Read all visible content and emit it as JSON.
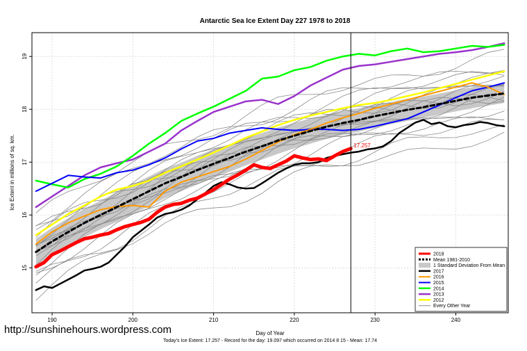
{
  "chart_data": {
    "type": "line",
    "title": "Antarctic Sea Ice Extent Day 227 1978 to 2018",
    "xlabel": "Day of Year",
    "ylabel": "Ice Extent in millions of sq. km.",
    "xlim": [
      187.5,
      246.5
    ],
    "ylim": [
      14.15,
      19.45
    ],
    "x_ticks": [
      190,
      200,
      210,
      220,
      230,
      240
    ],
    "y_ticks": [
      15,
      16,
      17,
      18,
      19
    ],
    "grid": true,
    "legend_position": "bottom-right",
    "marker_day": 227,
    "current_value_label": "17.257",
    "series": [
      {
        "name": "2018",
        "color": "#ff0000",
        "width": 5,
        "x": [
          188,
          189,
          190,
          191,
          192,
          193,
          194,
          195,
          196,
          197,
          198,
          199,
          200,
          201,
          202,
          203,
          204,
          205,
          206,
          207,
          208,
          209,
          210,
          211,
          212,
          213,
          214,
          215,
          216,
          217,
          218,
          219,
          220,
          221,
          222,
          223,
          224,
          225,
          226,
          227
        ],
        "y": [
          15.02,
          15.1,
          15.25,
          15.32,
          15.4,
          15.48,
          15.55,
          15.58,
          15.62,
          15.65,
          15.72,
          15.78,
          15.82,
          15.86,
          15.92,
          16.05,
          16.15,
          16.2,
          16.22,
          16.28,
          16.32,
          16.4,
          16.48,
          16.58,
          16.68,
          16.76,
          16.85,
          16.95,
          16.9,
          16.88,
          16.95,
          17.02,
          17.12,
          17.08,
          17.05,
          17.06,
          17.03,
          17.12,
          17.2,
          17.257
        ]
      },
      {
        "name": "Mean 1981-2010",
        "color": "#000000",
        "width": 3,
        "dash": "6,4",
        "x": [
          188,
          190,
          192,
          194,
          196,
          198,
          200,
          202,
          204,
          206,
          208,
          210,
          212,
          214,
          216,
          218,
          220,
          222,
          224,
          226,
          228,
          230,
          232,
          234,
          236,
          238,
          240,
          242,
          244,
          246
        ],
        "y": [
          15.3,
          15.5,
          15.68,
          15.85,
          16.0,
          16.15,
          16.3,
          16.45,
          16.6,
          16.72,
          16.85,
          16.97,
          17.08,
          17.2,
          17.3,
          17.41,
          17.5,
          17.59,
          17.67,
          17.74,
          17.8,
          17.87,
          17.93,
          17.99,
          18.04,
          18.1,
          18.16,
          18.22,
          18.26,
          18.3
        ]
      },
      {
        "name": "1 Standard Deviation From Mean",
        "color": "#c8c8c8",
        "band": true,
        "x": [
          188,
          190,
          192,
          194,
          196,
          198,
          200,
          202,
          204,
          206,
          208,
          210,
          212,
          214,
          216,
          218,
          220,
          222,
          224,
          226,
          228,
          230,
          232,
          234,
          236,
          238,
          240,
          242,
          244,
          246
        ],
        "lower": [
          15.05,
          15.24,
          15.42,
          15.58,
          15.73,
          15.87,
          16.02,
          16.17,
          16.32,
          16.45,
          16.58,
          16.7,
          16.82,
          16.94,
          17.05,
          17.16,
          17.26,
          17.35,
          17.44,
          17.51,
          17.58,
          17.65,
          17.72,
          17.78,
          17.84,
          17.9,
          17.96,
          18.02,
          18.07,
          18.12
        ],
        "upper": [
          15.55,
          15.76,
          15.94,
          16.12,
          16.27,
          16.43,
          16.58,
          16.73,
          16.88,
          16.99,
          17.12,
          17.24,
          17.34,
          17.46,
          17.55,
          17.66,
          17.74,
          17.83,
          17.9,
          17.97,
          18.02,
          18.09,
          18.14,
          18.2,
          18.24,
          18.3,
          18.36,
          18.42,
          18.45,
          18.48
        ]
      },
      {
        "name": "2017",
        "color": "#000000",
        "width": 2.5,
        "x": [
          188,
          189,
          190,
          191,
          192,
          193,
          194,
          195,
          196,
          197,
          198,
          199,
          200,
          201,
          202,
          203,
          204,
          205,
          206,
          207,
          208,
          209,
          210,
          211,
          212,
          213,
          214,
          215,
          216,
          217,
          218,
          219,
          220,
          221,
          222,
          223,
          224,
          225,
          226,
          227,
          228,
          229,
          230,
          231,
          232,
          233,
          234,
          235,
          236,
          237,
          238,
          239,
          240,
          241,
          242,
          243,
          244,
          245,
          246
        ],
        "y": [
          14.58,
          14.65,
          14.62,
          14.7,
          14.78,
          14.86,
          14.95,
          14.98,
          15.02,
          15.1,
          15.25,
          15.4,
          15.58,
          15.7,
          15.82,
          15.95,
          16.02,
          16.05,
          16.1,
          16.18,
          16.3,
          16.42,
          16.55,
          16.62,
          16.58,
          16.52,
          16.5,
          16.51,
          16.6,
          16.7,
          16.8,
          16.88,
          16.95,
          16.98,
          16.98,
          17.0,
          17.08,
          17.12,
          17.15,
          17.18,
          17.2,
          17.24,
          17.26,
          17.3,
          17.4,
          17.55,
          17.65,
          17.75,
          17.8,
          17.72,
          17.75,
          17.68,
          17.66,
          17.7,
          17.72,
          17.76,
          17.74,
          17.7,
          17.68
        ]
      },
      {
        "name": "2016",
        "color": "#ff9900",
        "width": 2,
        "x": [
          188,
          190,
          192,
          194,
          196,
          198,
          200,
          202,
          204,
          206,
          208,
          210,
          212,
          214,
          216,
          218,
          220,
          222,
          224,
          226,
          228,
          230,
          232,
          234,
          236,
          238,
          240,
          242,
          244,
          246
        ],
        "y": [
          15.45,
          15.68,
          15.85,
          15.98,
          16.1,
          16.16,
          16.18,
          16.15,
          16.45,
          16.62,
          16.72,
          16.82,
          16.92,
          17.06,
          17.22,
          17.38,
          17.52,
          17.62,
          17.74,
          17.84,
          17.92,
          18.02,
          18.1,
          18.18,
          18.26,
          18.34,
          18.42,
          18.5,
          18.42,
          18.28
        ]
      },
      {
        "name": "2015",
        "color": "#0000ff",
        "width": 2,
        "x": [
          188,
          190,
          192,
          194,
          196,
          198,
          200,
          202,
          204,
          206,
          208,
          210,
          212,
          214,
          216,
          218,
          220,
          222,
          224,
          226,
          228,
          230,
          232,
          234,
          236,
          238,
          240,
          242,
          244,
          246
        ],
        "y": [
          16.45,
          16.6,
          16.75,
          16.72,
          16.7,
          16.8,
          16.85,
          16.95,
          17.08,
          17.25,
          17.4,
          17.45,
          17.55,
          17.6,
          17.65,
          17.62,
          17.6,
          17.62,
          17.62,
          17.6,
          17.62,
          17.68,
          17.75,
          17.82,
          17.95,
          18.08,
          18.22,
          18.35,
          18.42,
          18.5
        ]
      },
      {
        "name": "2014",
        "color": "#00ff00",
        "width": 2.5,
        "x": [
          188,
          190,
          192,
          194,
          196,
          198,
          200,
          202,
          204,
          206,
          208,
          210,
          212,
          214,
          216,
          218,
          220,
          222,
          224,
          226,
          228,
          230,
          232,
          234,
          236,
          238,
          240,
          242,
          244,
          246
        ],
        "y": [
          16.65,
          16.58,
          16.52,
          16.68,
          16.78,
          16.92,
          17.12,
          17.35,
          17.55,
          17.78,
          17.92,
          18.05,
          18.2,
          18.35,
          18.58,
          18.62,
          18.74,
          18.8,
          18.92,
          19.0,
          19.05,
          19.02,
          19.1,
          19.15,
          19.08,
          19.1,
          19.15,
          19.2,
          19.18,
          19.22
        ]
      },
      {
        "name": "2013",
        "color": "#9933cc",
        "width": 2.5,
        "x": [
          188,
          190,
          192,
          194,
          196,
          198,
          200,
          202,
          204,
          206,
          208,
          210,
          212,
          214,
          216,
          218,
          220,
          222,
          224,
          226,
          228,
          230,
          232,
          234,
          236,
          238,
          240,
          242,
          244,
          246
        ],
        "y": [
          16.15,
          16.35,
          16.55,
          16.75,
          16.9,
          16.98,
          17.05,
          17.2,
          17.35,
          17.6,
          17.78,
          17.95,
          18.05,
          18.15,
          18.18,
          18.1,
          18.25,
          18.45,
          18.6,
          18.75,
          18.82,
          18.85,
          18.9,
          18.95,
          19.0,
          19.05,
          19.08,
          19.12,
          19.18,
          19.25
        ]
      },
      {
        "name": "2012",
        "color": "#ffff00",
        "width": 2.5,
        "x": [
          188,
          190,
          192,
          194,
          196,
          198,
          200,
          202,
          204,
          206,
          208,
          210,
          212,
          214,
          216,
          218,
          220,
          222,
          224,
          226,
          228,
          230,
          232,
          234,
          236,
          238,
          240,
          242,
          244,
          246
        ],
        "y": [
          15.62,
          15.82,
          16.02,
          16.18,
          16.35,
          16.48,
          16.55,
          16.65,
          16.8,
          16.92,
          17.05,
          17.18,
          17.32,
          17.46,
          17.58,
          17.7,
          17.8,
          17.88,
          17.95,
          18.02,
          18.08,
          18.12,
          18.18,
          18.25,
          18.32,
          18.4,
          18.48,
          18.56,
          18.64,
          18.72
        ]
      },
      {
        "name": "Every Other Year",
        "color": "#888888",
        "width": 1
      }
    ]
  },
  "footer": {
    "website": "http://sunshinehours.wordpress.com",
    "summary": "Today's Ice Extent: 17.257  - Record for the day: 19.097 which occurred on 2014 8 15  - Mean: 17.74"
  }
}
